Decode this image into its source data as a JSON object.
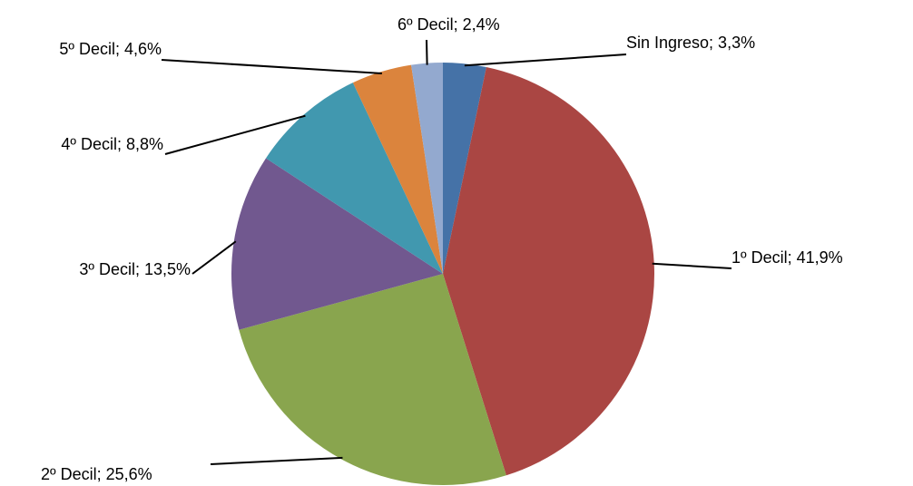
{
  "chart_data": {
    "type": "pie",
    "categories": [
      "Sin Ingreso",
      "1º Decil",
      "2º Decil",
      "3º Decil",
      "4º Decil",
      "5º Decil",
      "6º Decil"
    ],
    "values": [
      3.3,
      41.9,
      25.6,
      13.5,
      8.8,
      4.6,
      2.4
    ],
    "value_labels": [
      "Sin Ingreso; 3,3%",
      "1º Decil; 41,9%",
      "2º Decil; 25,6%",
      "3º Decil; 13,5%",
      "4º Decil; 8,8%",
      "5º Decil; 4,6%",
      "6º Decil; 2,4%"
    ],
    "colors": [
      "#4572a7",
      "#aa4643",
      "#89a54e",
      "#71588f",
      "#4198af",
      "#db843d",
      "#93a9cf"
    ]
  }
}
